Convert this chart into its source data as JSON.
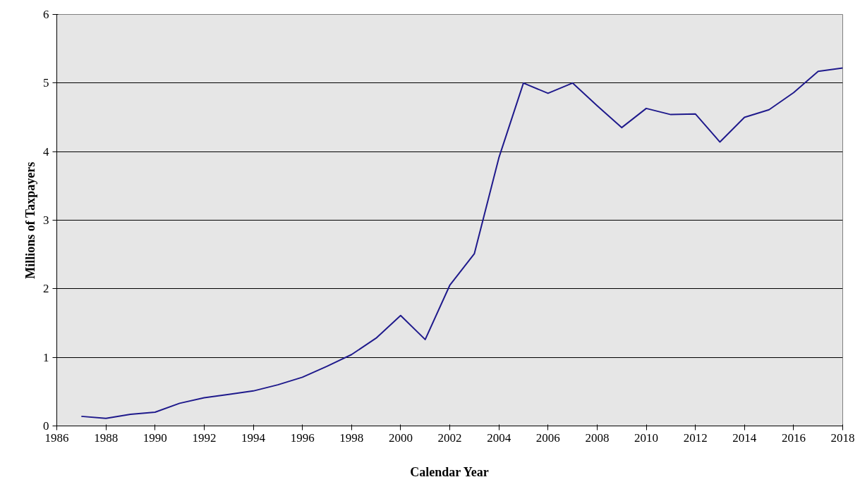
{
  "chart_data": {
    "type": "line",
    "xlabel": "Calendar Year",
    "ylabel": "Millions of Taxpayers",
    "x": [
      1987,
      1988,
      1989,
      1990,
      1991,
      1992,
      1993,
      1994,
      1995,
      1996,
      1997,
      1998,
      1999,
      2000,
      2001,
      2002,
      2003,
      2004,
      2005,
      2006,
      2007,
      2008,
      2009,
      2010,
      2011,
      2012,
      2013,
      2014,
      2015,
      2016,
      2017,
      2018
    ],
    "series": [
      {
        "color": "#1f1a8c",
        "values": [
          0.14,
          0.11,
          0.17,
          0.2,
          0.33,
          0.41,
          0.46,
          0.51,
          0.6,
          0.71,
          0.87,
          1.04,
          1.28,
          1.61,
          1.26,
          2.05,
          2.51,
          3.91,
          5.0,
          4.85,
          5.0,
          4.67,
          4.35,
          4.63,
          4.54,
          4.55,
          4.14,
          4.5,
          4.61,
          4.86,
          5.17,
          5.22
        ]
      }
    ],
    "xlim": [
      1986,
      2018
    ],
    "ylim": [
      0,
      6
    ],
    "xticks": [
      1986,
      1988,
      1990,
      1992,
      1994,
      1996,
      1998,
      2000,
      2002,
      2004,
      2006,
      2008,
      2010,
      2012,
      2014,
      2016,
      2018
    ],
    "yticks": [
      0,
      1,
      2,
      3,
      4,
      5,
      6
    ],
    "grid": "y",
    "marker": "none",
    "line_style": "solid"
  }
}
